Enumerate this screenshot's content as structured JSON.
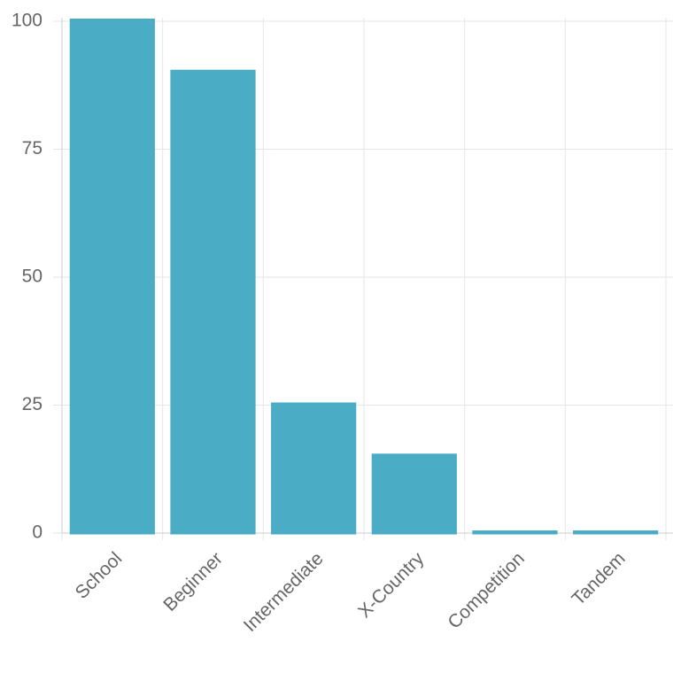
{
  "chart_data": {
    "type": "bar",
    "categories": [
      "School",
      "Beginner",
      "Intermediate",
      "X-Country",
      "Competition",
      "Tandem"
    ],
    "values": [
      100,
      90,
      25,
      15,
      0,
      0
    ],
    "color": "#4bacc6",
    "ylim": [
      0,
      100
    ],
    "yticks": [
      0,
      25,
      50,
      75,
      100
    ],
    "grid": true
  }
}
